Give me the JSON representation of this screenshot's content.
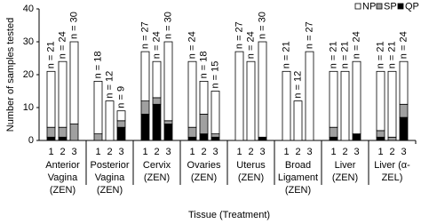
{
  "chart_data": {
    "type": "stacked-bar",
    "y_label": "Number of samples tested",
    "x_label": "Tissue (Treatment)",
    "group_labels": [
      [
        "Anterior",
        "Vagina",
        "(ZEN)"
      ],
      [
        "Posterior",
        "Vagina",
        "(ZEN)"
      ],
      [
        "Cervix",
        "(ZEN)"
      ],
      [
        "Ovaries",
        "(ZEN)"
      ],
      [
        "Uterus",
        "(ZEN)"
      ],
      [
        "Broad",
        "Ligament",
        "(ZEN)"
      ],
      [
        "Liver",
        "(ZEN)"
      ],
      [
        "Liver (α-",
        "ZEL)"
      ]
    ],
    "bar_labels": [
      "1",
      "2",
      "3"
    ],
    "annotations": [
      [
        "n = 21",
        "n = 24",
        "n = 30"
      ],
      [
        "n = 18",
        "n = 12",
        "n = 9"
      ],
      [
        "n = 27",
        "n = 24",
        "n = 30"
      ],
      [
        "n = 24",
        "n = 18",
        "n = 15"
      ],
      [
        "n = 27",
        "n = 24",
        "n = 30"
      ],
      [
        "n = 21",
        "n = 12",
        "n = 27"
      ],
      [
        "n = 21",
        "n = 21",
        "n = 24"
      ],
      [
        "n = 21",
        "n = 21",
        "n = 24"
      ]
    ],
    "series": [
      {
        "name": "QP",
        "color": "#000000",
        "values": [
          [
            1,
            1,
            0
          ],
          [
            0,
            0,
            4
          ],
          [
            8,
            11,
            5
          ],
          [
            1,
            2,
            1
          ],
          [
            0,
            0,
            1
          ],
          [
            0,
            0,
            0
          ],
          [
            1,
            0,
            2
          ],
          [
            1,
            0,
            7
          ]
        ]
      },
      {
        "name": "SP",
        "color": "#a0a0a0",
        "values": [
          [
            3,
            3,
            5
          ],
          [
            2,
            0,
            2
          ],
          [
            4,
            2,
            1
          ],
          [
            3,
            6,
            1
          ],
          [
            0,
            0,
            0
          ],
          [
            0,
            0,
            0
          ],
          [
            3,
            0,
            0
          ],
          [
            2,
            1,
            4
          ]
        ]
      },
      {
        "name": "NP",
        "color": "#ffffff",
        "values": [
          [
            17,
            20,
            25
          ],
          [
            16,
            12,
            3
          ],
          [
            15,
            11,
            24
          ],
          [
            20,
            10,
            13
          ],
          [
            27,
            24,
            29
          ],
          [
            21,
            12,
            27
          ],
          [
            17,
            21,
            22
          ],
          [
            18,
            20,
            13
          ]
        ]
      }
    ],
    "ylim": [
      0,
      40
    ],
    "yticks": [
      0,
      10,
      20,
      30,
      40
    ],
    "legend": "top-right"
  }
}
